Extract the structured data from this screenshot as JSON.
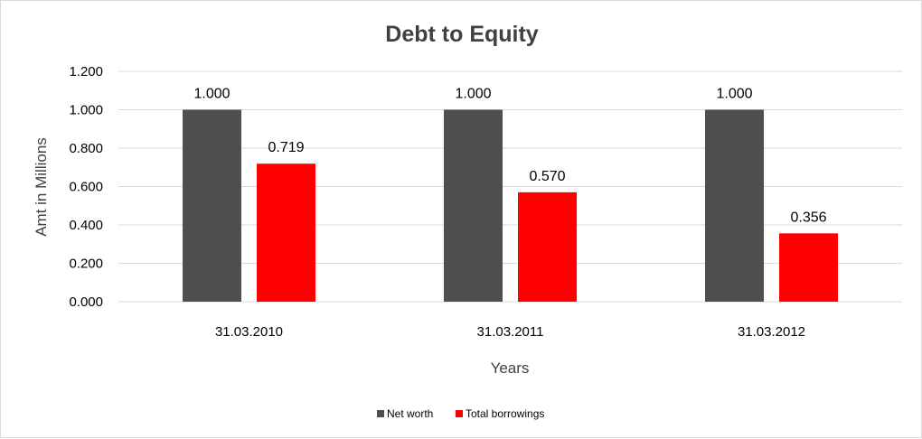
{
  "chart_data": {
    "type": "bar",
    "title": "Debt to Equity",
    "xlabel": "Years",
    "ylabel": "Amt in Millions",
    "categories": [
      "31.03.2010",
      "31.03.2011",
      "31.03.2012"
    ],
    "series": [
      {
        "name": "Net worth",
        "color": "#4f4f4f",
        "values": [
          1.0,
          1.0,
          1.0
        ],
        "labels": [
          "1.000",
          "1.000",
          "1.000"
        ]
      },
      {
        "name": "Total borrowings",
        "color": "#ff0000",
        "values": [
          0.719,
          0.57,
          0.356
        ],
        "labels": [
          "0.719",
          "0.570",
          "0.356"
        ]
      }
    ],
    "ylim": [
      0,
      1.2
    ],
    "yticks": [
      "0.000",
      "0.200",
      "0.400",
      "0.600",
      "0.800",
      "1.000",
      "1.200"
    ],
    "grid": true,
    "legend_position": "bottom"
  }
}
